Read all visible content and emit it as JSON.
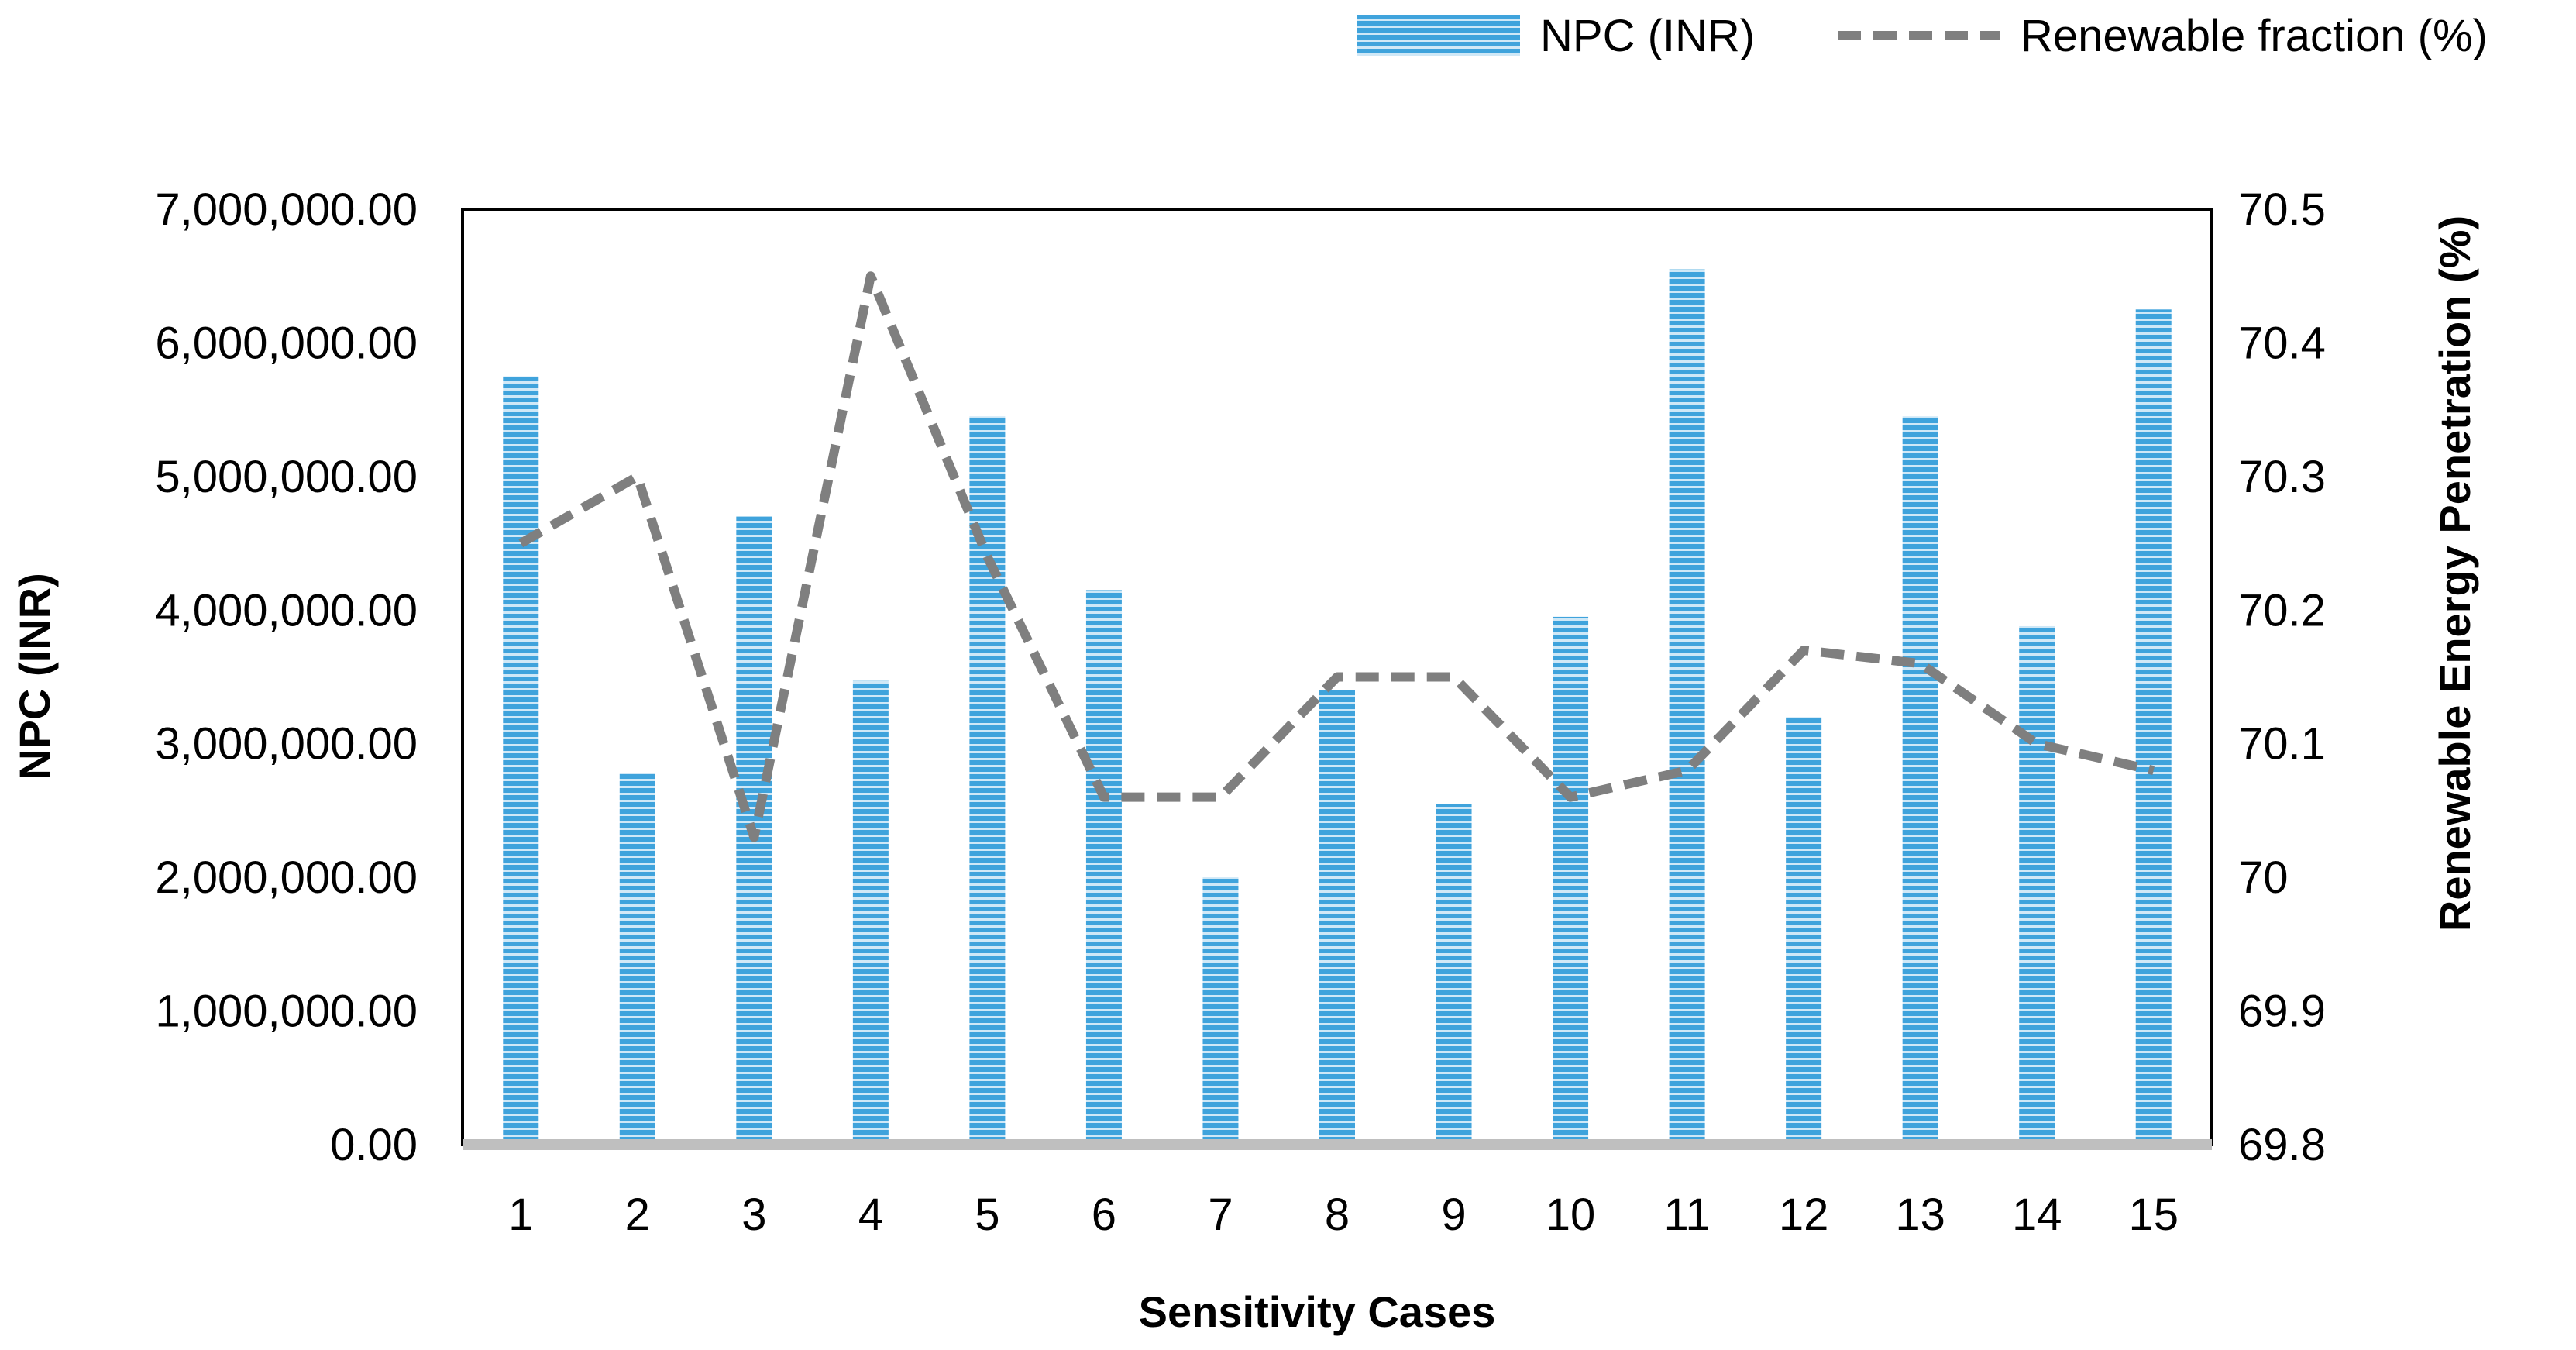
{
  "chart_data": {
    "type": "bar",
    "title": "",
    "xlabel": "Sensitivity Cases",
    "ylabel": "NPC (INR)",
    "y2label": "Renewable Energy Penetration (%)",
    "categories": [
      "1",
      "2",
      "3",
      "4",
      "5",
      "6",
      "7",
      "8",
      "9",
      "10",
      "11",
      "12",
      "13",
      "14",
      "15"
    ],
    "ylim": [
      0,
      7000000
    ],
    "y2lim": [
      69.8,
      70.5
    ],
    "yticks": [
      "0.00",
      "1,000,000.00",
      "2,000,000.00",
      "3,000,000.00",
      "4,000,000.00",
      "5,000,000.00",
      "6,000,000.00",
      "7,000,000.00"
    ],
    "y2ticks": [
      "69.8",
      "69.9",
      "70",
      "70.1",
      "70.2",
      "70.3",
      "70.4",
      "70.5"
    ],
    "series": [
      {
        "name": "NPC (INR)",
        "type": "bar",
        "axis": "left",
        "color": "#3fa3dc",
        "values": [
          5750000,
          2780000,
          4700000,
          3470000,
          5450000,
          4150000,
          2000000,
          3400000,
          2550000,
          3950000,
          6550000,
          3200000,
          5450000,
          3880000,
          6250000
        ]
      },
      {
        "name": "Renewable fraction (%)",
        "type": "line",
        "style": "dashed",
        "axis": "right",
        "color": "#7f7f7f",
        "values": [
          70.25,
          70.3,
          70.03,
          70.45,
          70.24,
          70.06,
          70.06,
          70.15,
          70.15,
          70.06,
          70.08,
          70.17,
          70.16,
          70.1,
          70.08
        ]
      }
    ],
    "legend": {
      "position": "top-right",
      "items": [
        "NPC (INR)",
        "Renewable fraction (%)"
      ]
    }
  }
}
